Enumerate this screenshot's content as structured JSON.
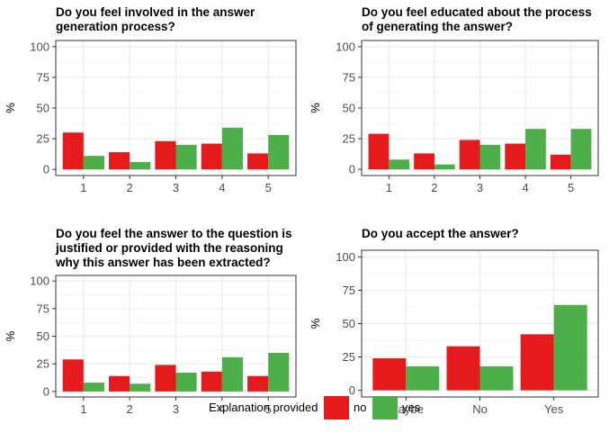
{
  "colors": {
    "no": "#e41a1c",
    "yes": "#4daf4a",
    "grid": "#ebebeb",
    "panel_border": "#333333"
  },
  "legend": {
    "title": "Explanation provided",
    "entries": [
      {
        "key": "no",
        "label": "no"
      },
      {
        "key": "yes",
        "label": "yes"
      }
    ]
  },
  "chart_data": [
    {
      "type": "bar",
      "title": [
        "Do you feel involved in the answer",
        "generation process?"
      ],
      "ylabel": "%",
      "ylim": [
        0,
        100
      ],
      "yticks": [
        "0",
        "25",
        "50",
        "75",
        "100"
      ],
      "categories": [
        "1",
        "2",
        "3",
        "4",
        "5"
      ],
      "series": [
        {
          "name": "no",
          "values": [
            30,
            14,
            23,
            21,
            13
          ]
        },
        {
          "name": "yes",
          "values": [
            11,
            6,
            20,
            34,
            28
          ]
        }
      ]
    },
    {
      "type": "bar",
      "title": [
        "Do you feel educated about the process",
        "of generating the answer?"
      ],
      "ylabel": "%",
      "ylim": [
        0,
        100
      ],
      "yticks": [
        "0",
        "25",
        "50",
        "75",
        "100"
      ],
      "categories": [
        "1",
        "2",
        "3",
        "4",
        "5"
      ],
      "series": [
        {
          "name": "no",
          "values": [
            29,
            13,
            24,
            21,
            12
          ]
        },
        {
          "name": "yes",
          "values": [
            8,
            4,
            20,
            33,
            33
          ]
        }
      ]
    },
    {
      "type": "bar",
      "title": [
        "Do you feel the answer to the question is",
        "justified or provided with the reasoning",
        "why this answer has been extracted?"
      ],
      "ylabel": "%",
      "ylim": [
        0,
        100
      ],
      "yticks": [
        "0",
        "25",
        "50",
        "75",
        "100"
      ],
      "categories": [
        "1",
        "2",
        "3",
        "4",
        "5"
      ],
      "series": [
        {
          "name": "no",
          "values": [
            29,
            14,
            24,
            18,
            14
          ]
        },
        {
          "name": "yes",
          "values": [
            8,
            7,
            17,
            31,
            35
          ]
        }
      ]
    },
    {
      "type": "bar",
      "title": [
        "Do you accept the answer?"
      ],
      "ylabel": "%",
      "ylim": [
        0,
        100
      ],
      "yticks": [
        "0",
        "25",
        "50",
        "75",
        "100"
      ],
      "categories": [
        "Maybe",
        "No",
        "Yes"
      ],
      "series": [
        {
          "name": "no",
          "values": [
            24,
            33,
            42
          ]
        },
        {
          "name": "yes",
          "values": [
            18,
            18,
            64
          ]
        }
      ]
    }
  ]
}
